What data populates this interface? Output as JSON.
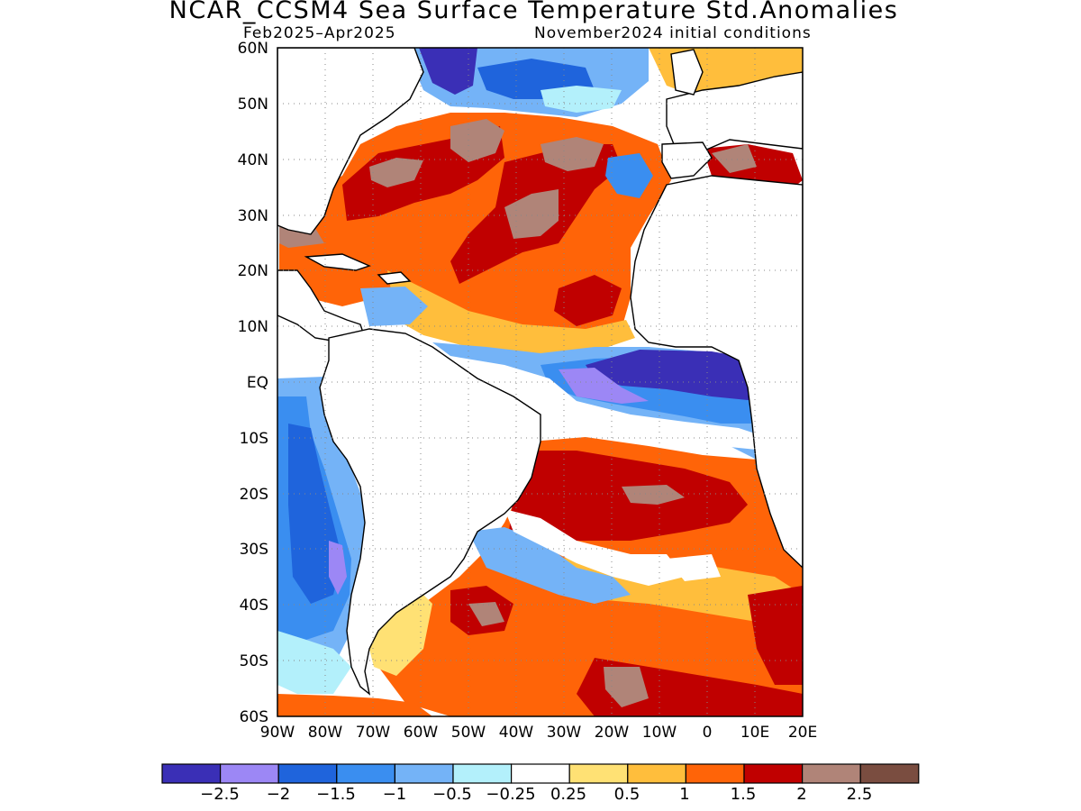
{
  "header": {
    "title": "NCAR_CCSM4 Sea Surface Temperature Std.Anomalies",
    "period": "Feb2025–Apr2025",
    "init": "November2024 initial conditions"
  },
  "map": {
    "lat_labels": [
      "60N",
      "50N",
      "40N",
      "30N",
      "20N",
      "10N",
      "EQ",
      "10S",
      "20S",
      "30S",
      "40S",
      "50S",
      "60S"
    ],
    "lon_labels": [
      "90W",
      "80W",
      "70W",
      "60W",
      "50W",
      "40W",
      "30W",
      "20W",
      "10W",
      "0",
      "10E",
      "20E"
    ],
    "lat_range": [
      -60,
      60
    ],
    "lon_range": [
      -90,
      20
    ],
    "grid": true
  },
  "colorbar": {
    "colors": [
      "#3a2fb6",
      "#9c87f5",
      "#1f64dc",
      "#3a8ef0",
      "#74b3f7",
      "#b3f0fb",
      "#ffffff",
      "#ffe174",
      "#ffbe3c",
      "#ff6408",
      "#c00000",
      "#b08478",
      "#7a4d40"
    ],
    "labels": [
      "−2.5",
      "−2",
      "−1.5",
      "−1",
      "−0.5",
      "−0.25",
      "0.25",
      "0.5",
      "1",
      "1.5",
      "2",
      "2.5"
    ]
  },
  "chart_data": {
    "type": "heatmap",
    "title": "NCAR_CCSM4 Sea Surface Temperature Std.Anomalies",
    "xlim": [
      -90,
      20
    ],
    "ylim": [
      -60,
      60
    ],
    "levels": [
      -2.5,
      -2,
      -1.5,
      -1,
      -0.5,
      -0.25,
      0.25,
      0.5,
      1,
      1.5,
      2,
      2.5
    ]
  }
}
